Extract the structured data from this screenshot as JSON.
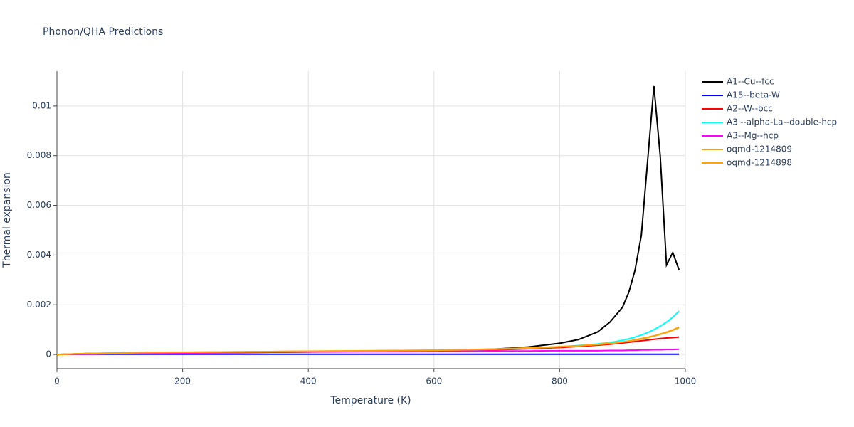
{
  "chart_data": {
    "type": "line",
    "title": "Phonon/QHA Predictions",
    "x_label": "Temperature (K)",
    "y_label": "Thermal expansion",
    "x": [
      0,
      50,
      100,
      150,
      200,
      250,
      300,
      350,
      400,
      450,
      500,
      550,
      600,
      650,
      700,
      750,
      800,
      830,
      860,
      880,
      900,
      910,
      920,
      930,
      940,
      950,
      960,
      970,
      980,
      990
    ],
    "series": [
      {
        "name": "A1--Cu--fcc",
        "color": "#000000",
        "values": [
          0,
          4e-05,
          5e-05,
          6e-05,
          7e-05,
          8e-05,
          9e-05,
          0.0001,
          0.00011,
          0.00012,
          0.00013,
          0.00014,
          0.00015,
          0.00017,
          0.00022,
          0.0003,
          0.00045,
          0.0006,
          0.0009,
          0.0013,
          0.0019,
          0.0025,
          0.0034,
          0.0048,
          0.0078,
          0.0108,
          0.008,
          0.0036,
          0.0041,
          0.0034
        ]
      },
      {
        "name": "A15--beta-W",
        "color": "#0000ff",
        "values": [
          0,
          1e-05,
          1e-05,
          1e-05,
          1e-05,
          1e-05,
          1e-05,
          1e-05,
          1e-05,
          1e-05,
          1e-05,
          1e-05,
          1e-05,
          1e-05,
          1e-05,
          1e-05,
          1e-05,
          1e-05,
          1e-05,
          1e-05,
          1e-05,
          1e-05,
          1e-05,
          1e-05,
          1e-05,
          1e-05,
          1e-05,
          1e-05,
          1e-05,
          1e-05
        ]
      },
      {
        "name": "A2--W--bcc",
        "color": "#ff0000",
        "values": [
          0,
          2e-05,
          4e-05,
          5e-05,
          6e-05,
          7e-05,
          8e-05,
          9e-05,
          0.0001,
          0.00011,
          0.00012,
          0.00013,
          0.00014,
          0.00016,
          0.00019,
          0.00023,
          0.00028,
          0.00032,
          0.00037,
          0.00041,
          0.00046,
          0.00049,
          0.00052,
          0.00055,
          0.00058,
          0.00061,
          0.00064,
          0.00066,
          0.00068,
          0.0007
        ]
      },
      {
        "name": "A3'--alpha-La--double-hcp",
        "color": "#00ffff",
        "values": [
          0,
          3e-05,
          5e-05,
          7e-05,
          8e-05,
          9e-05,
          0.0001,
          0.00011,
          0.00012,
          0.00013,
          0.00014,
          0.00015,
          0.00016,
          0.00018,
          0.00021,
          0.00025,
          0.00031,
          0.00036,
          0.00042,
          0.00048,
          0.00057,
          0.00063,
          0.0007,
          0.00078,
          0.00088,
          0.001,
          0.00114,
          0.0013,
          0.0015,
          0.00175
        ]
      },
      {
        "name": "A3--Mg--hcp",
        "color": "#ff00ff",
        "values": [
          0,
          2e-05,
          4e-05,
          5e-05,
          6e-05,
          7e-05,
          8e-05,
          9e-05,
          0.0001,
          0.00011,
          0.00012,
          0.00012,
          0.00013,
          0.00013,
          0.00014,
          0.00014,
          0.00015,
          0.00015,
          0.00015,
          0.00016,
          0.00016,
          0.00017,
          0.00017,
          0.00018,
          0.00018,
          0.00019,
          0.00019,
          0.0002,
          0.0002,
          0.00021
        ]
      },
      {
        "name": "oqmd-1214809",
        "color": "#e8a33a",
        "values": [
          0,
          4e-05,
          6e-05,
          8e-05,
          9e-05,
          0.0001,
          0.00011,
          0.00012,
          0.00013,
          0.00014,
          0.00015,
          0.00016,
          0.00017,
          0.00019,
          0.00022,
          0.00026,
          0.00031,
          0.00035,
          0.0004,
          0.00044,
          0.0005,
          0.00054,
          0.00058,
          0.00063,
          0.00068,
          0.00074,
          0.00081,
          0.00088,
          0.00097,
          0.00108
        ]
      },
      {
        "name": "oqmd-1214898",
        "color": "#ffa500",
        "values": [
          0,
          4e-05,
          6e-05,
          8e-05,
          9e-05,
          0.0001,
          0.00011,
          0.00012,
          0.00013,
          0.00014,
          0.00015,
          0.00016,
          0.00017,
          0.00019,
          0.00022,
          0.00026,
          0.00031,
          0.00035,
          0.0004,
          0.00045,
          0.0005,
          0.00054,
          0.00059,
          0.00064,
          0.00069,
          0.00075,
          0.00082,
          0.0009,
          0.00099,
          0.0011
        ]
      }
    ],
    "xlim": [
      0,
      1000
    ],
    "xticks": [
      0,
      200,
      400,
      600,
      800,
      1000
    ],
    "ylim": [
      -0.00057,
      0.0114
    ],
    "yticks": [
      0,
      0.002,
      0.004,
      0.006,
      0.008,
      0.01
    ],
    "grid": true,
    "legend": "right"
  }
}
